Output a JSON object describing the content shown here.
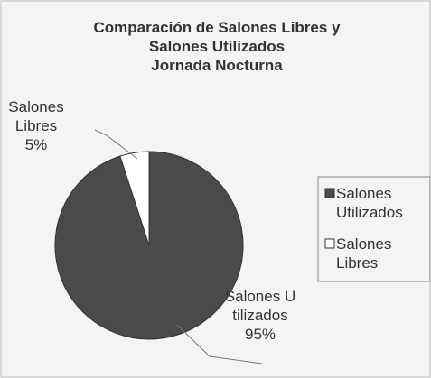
{
  "chart_data": {
    "type": "pie",
    "title": "Comparación de Salones Libres y\nSalones Utilizados\nJornada Nocturna",
    "categories": [
      "Salones Utilizados",
      "Salones Libres"
    ],
    "values": [
      95,
      5
    ],
    "value_labels": [
      "95%",
      "5%"
    ],
    "colors": [
      "#4a4a4a",
      "#ffffff"
    ],
    "legend": "right"
  }
}
